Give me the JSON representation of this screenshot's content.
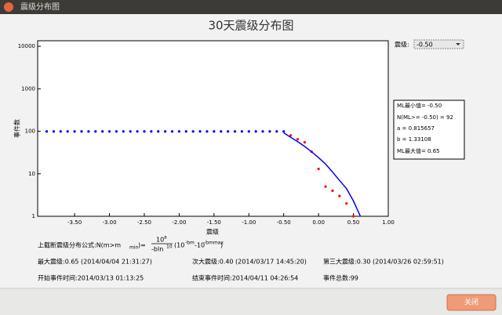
{
  "window": {
    "title": "震级分布图",
    "close_button": "关闭"
  },
  "chart_data": {
    "type": "line",
    "title": "30天震级分布图",
    "x_label": "震级",
    "y_label": "事件数",
    "xlim": [
      -4.03,
      1.0
    ],
    "ylim": [
      1,
      13500
    ],
    "log_y": true,
    "xticks": [
      {
        "value": -3.5,
        "label": "-3.50"
      },
      {
        "value": -3.0,
        "label": "-3.00"
      },
      {
        "value": -2.5,
        "label": "-2.50"
      },
      {
        "value": -2.0,
        "label": "-2.00"
      },
      {
        "value": -1.5,
        "label": "-1.50"
      },
      {
        "value": -1.0,
        "label": "-1.00"
      },
      {
        "value": -0.5,
        "label": "-0.50"
      },
      {
        "value": 0.0,
        "label": "0.00"
      },
      {
        "value": 0.5,
        "label": "0.50"
      },
      {
        "value": 1.0,
        "label": "1.00"
      }
    ],
    "yticks": [
      1,
      10,
      100,
      1000,
      10000
    ],
    "series": [
      {
        "color": "#0000ff",
        "style": "markers",
        "x": [
          -3.9,
          -3.8,
          -3.7,
          -3.6,
          -3.5,
          -3.4,
          -3.3,
          -3.2,
          -3.1,
          -3.0,
          -2.9,
          -2.8,
          -2.7,
          -2.6,
          -2.5,
          -2.4,
          -2.3,
          -2.2,
          -2.1,
          -2.0,
          -1.9,
          -1.8,
          -1.7,
          -1.6,
          -1.5,
          -1.4,
          -1.3,
          -1.2,
          -1.1,
          -1.0,
          -0.9,
          -0.8,
          -0.7,
          -0.6,
          -0.5
        ],
        "values": [
          99,
          99,
          99,
          99,
          99,
          99,
          99,
          99,
          99,
          99,
          99,
          99,
          99,
          99,
          99,
          99,
          99,
          99,
          99,
          99,
          99,
          99,
          99,
          99,
          99,
          99,
          99,
          99,
          99,
          99,
          99,
          99,
          99,
          99,
          99
        ]
      },
      {
        "color": "#ff0000",
        "style": "markers",
        "x": [
          -0.4,
          -0.3,
          -0.2,
          -0.1,
          0.0,
          0.1,
          0.2,
          0.3,
          0.4,
          0.5
        ],
        "values": [
          80,
          65,
          55,
          33,
          13,
          5,
          4,
          3,
          2,
          1
        ]
      },
      {
        "color": "#0000ff",
        "style": "line",
        "x": [
          -0.5,
          -0.4,
          -0.3,
          -0.2,
          -0.1,
          0.0,
          0.1,
          0.2,
          0.3,
          0.4,
          0.5,
          0.6
        ],
        "values": [
          92,
          72,
          57,
          44,
          33,
          24,
          17,
          11,
          7,
          4.5,
          2.3,
          1
        ]
      }
    ]
  },
  "controls": {
    "magnitude_label": "震级:",
    "magnitude_value": "-0.50"
  },
  "info_box": [
    "ML最小值= -0.50",
    "N(ML>= -0.50) = 92",
    "a = 0.815657",
    "b = 1.33108",
    "ML最大值= 0.65"
  ],
  "formula": [
    "上截断震级分布公式:N(m>m",
    "min",
    ")=",
    "10",
    "a",
    "-bln",
    "10",
    "(10",
    "-bm",
    "-10",
    "-bmmax",
    ")"
  ],
  "stats": [
    [
      "最大震级:0.65 (2014/04/04 21:31:27)",
      "次大震级:0.40 (2014/03/17 14:45:20)",
      "第三大震级:0.30 (2014/03/26 02:59:51)"
    ],
    [
      "开始事件时间:2014/03/13 01:13:25",
      "结束事件时间:2014/04/11 04:26:54",
      "事件总数:99"
    ]
  ]
}
